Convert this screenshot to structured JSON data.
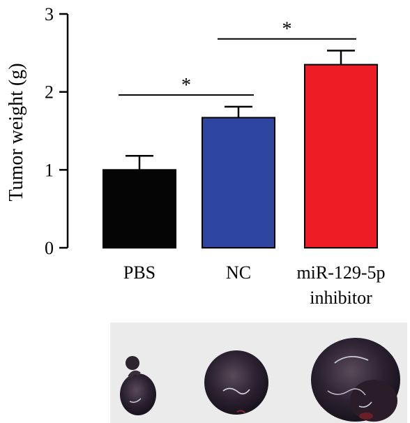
{
  "chart_data": {
    "type": "bar",
    "ylabel": "Tumor weight (g)",
    "ylim": [
      0,
      3
    ],
    "yticks": [
      "0",
      "1",
      "2",
      "3"
    ],
    "categories": [
      {
        "lines": [
          "PBS"
        ]
      },
      {
        "lines": [
          "NC"
        ]
      },
      {
        "lines": [
          "miR-129-5p",
          "inhibitor"
        ]
      }
    ],
    "values": [
      1.0,
      1.67,
      2.35
    ],
    "errors": [
      0.18,
      0.14,
      0.18
    ],
    "colors": [
      "#050505",
      "#2f46a0",
      "#ee1c25"
    ],
    "significance": [
      {
        "from": 0,
        "to": 1,
        "label": "*",
        "y": 1.96
      },
      {
        "from": 1,
        "to": 2,
        "label": "*",
        "y": 2.68
      }
    ]
  },
  "photo": {
    "description_icon": "tumor-photo",
    "tumor_colors": [
      "#2a2030",
      "#3a2a3c",
      "#4a3846"
    ],
    "background": "#ebebeb"
  }
}
